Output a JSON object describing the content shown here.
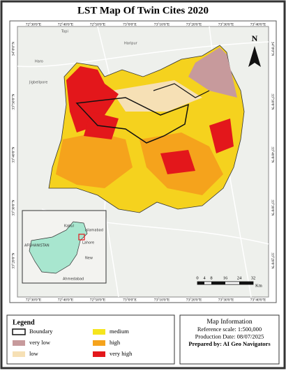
{
  "title": "LST  Map Of Twin Cites 2020",
  "north": "N",
  "lon_labels": [
    "72°30'0\"E",
    "72°40'0\"E",
    "72°50'0\"E",
    "73°0'0\"E",
    "73°10'0\"E",
    "73°20'0\"E",
    "73°30'0\"E",
    "73°40'0\"E"
  ],
  "lat_labels": [
    "34°0'0\"N",
    "33°50'0\"N",
    "33°40'0\"N",
    "33°30'0\"N",
    "33°20'0\"N"
  ],
  "places": [
    "Topi",
    "Haripur",
    "Haro",
    "Jigbellpore"
  ],
  "inset": {
    "labels": [
      "AFGHANISTAN",
      "Kabul",
      "Islamabad",
      "Lahore",
      "New",
      "Ahmedabad"
    ]
  },
  "scale": {
    "ticks": [
      "0",
      "4",
      "8",
      "16",
      "24",
      "32"
    ],
    "unit": "Km"
  },
  "legend": {
    "title": "Legend",
    "items": [
      {
        "label": "Boundary",
        "color": "#ffffff"
      },
      {
        "label": "very low",
        "color": "#c79a9c"
      },
      {
        "label": "low",
        "color": "#f6e0b5"
      },
      {
        "label": "medium",
        "color": "#f5e51e"
      },
      {
        "label": "high",
        "color": "#f5a31c"
      },
      {
        "label": "very high",
        "color": "#e3171b"
      }
    ]
  },
  "info": {
    "title": "Map Information",
    "lines": [
      "Reference scale: 1:500,000",
      "Production Date: 08/07/2025",
      "Prepared by: AI Geo Navigators"
    ]
  }
}
